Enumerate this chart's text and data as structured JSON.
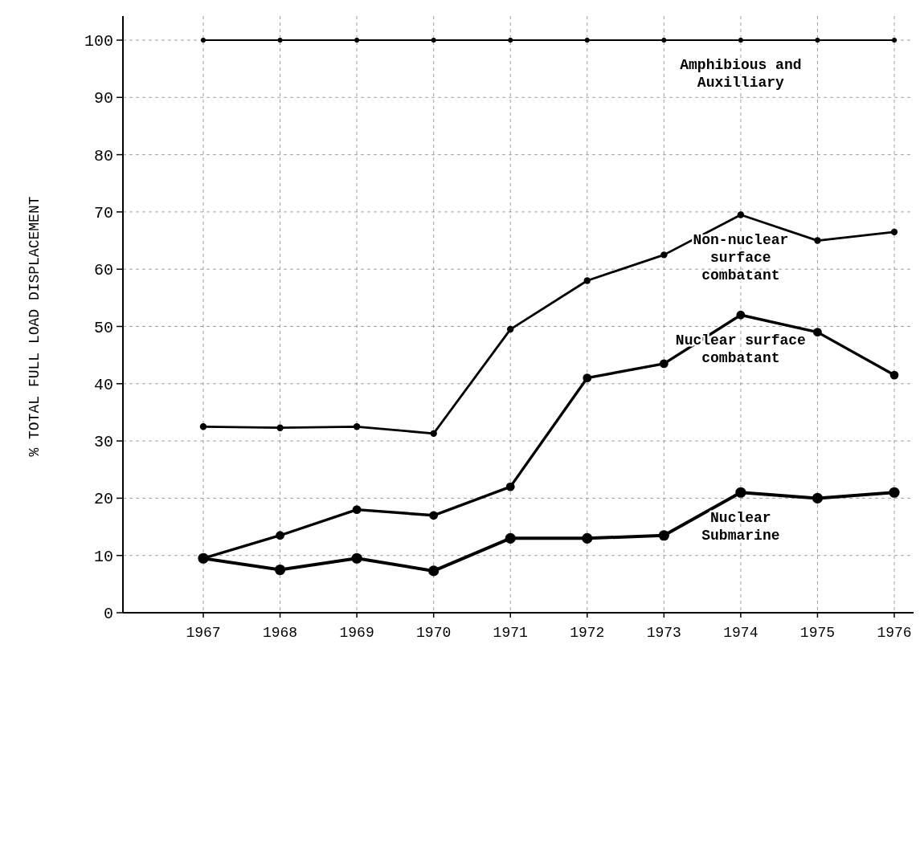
{
  "chart_data": {
    "type": "line",
    "ylabel": "% TOTAL FULL LOAD DISPLACEMENT",
    "categories": [
      "1967",
      "1968",
      "1969",
      "1970",
      "1971",
      "1972",
      "1973",
      "1974",
      "1975",
      "1976"
    ],
    "series": [
      {
        "name": "Nuclear Submarine",
        "color": "#000000",
        "values": [
          9.5,
          7.5,
          9.5,
          7.3,
          13,
          13,
          13.5,
          21,
          20,
          21
        ]
      },
      {
        "name": "Nuclear surface combatant",
        "color": "#000000",
        "values": [
          9.5,
          13.5,
          18,
          17,
          22,
          41,
          43.5,
          52,
          49,
          41.5
        ]
      },
      {
        "name": "Non-nuclear surface combatant",
        "color": "#000000",
        "values": [
          32.5,
          32.3,
          32.5,
          31.3,
          49.5,
          58,
          62.5,
          69.5,
          65,
          66.5
        ]
      },
      {
        "name": "Amphibious and Auxilliary",
        "color": "#000000",
        "values": [
          100,
          100,
          100,
          100,
          100,
          100,
          100,
          100,
          100,
          100
        ]
      }
    ],
    "ylim": [
      0,
      100
    ],
    "yticks": [
      0,
      10,
      20,
      30,
      40,
      50,
      60,
      70,
      80,
      90,
      100
    ],
    "grid": true,
    "marker": "circle",
    "line_style": "solid"
  }
}
